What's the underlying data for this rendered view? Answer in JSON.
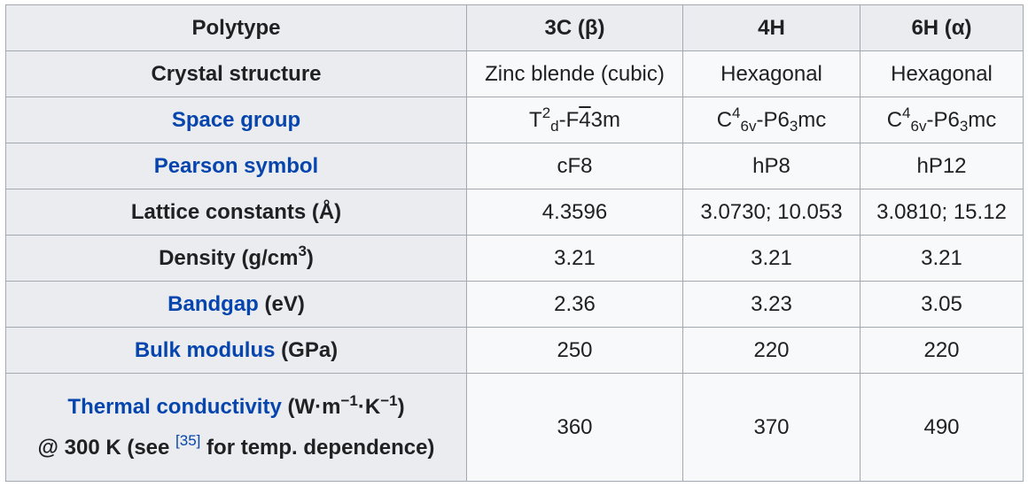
{
  "table": {
    "header": {
      "label": "Polytype",
      "columns": [
        "3C (β)",
        "4H",
        "6H (α)"
      ]
    },
    "crystal_structure": {
      "label": "Crystal structure",
      "values": [
        "Zinc blende (cubic)",
        "Hexagonal",
        "Hexagonal"
      ]
    },
    "space_group": {
      "label": "Space group",
      "c1": {
        "a": "T",
        "sup": "2",
        "sub": "d",
        "b": "-F",
        "bar": "4",
        "c": "3m"
      },
      "c2": {
        "a": "C",
        "sup": "4",
        "sub": "6v",
        "b": "-P6",
        "sub2": "3",
        "c": "mc"
      },
      "c3": {
        "a": "C",
        "sup": "4",
        "sub": "6v",
        "b": "-P6",
        "sub2": "3",
        "c": "mc"
      }
    },
    "pearson_symbol": {
      "label": "Pearson symbol",
      "values": [
        "cF8",
        "hP8",
        "hP12"
      ]
    },
    "lattice_constants": {
      "label": "Lattice constants (Å)",
      "values": [
        "4.3596",
        "3.0730; 10.053",
        "3.0810; 15.12"
      ]
    },
    "density": {
      "label_pre": "Density (g/cm",
      "label_sup": "3",
      "label_post": ")",
      "values": [
        "3.21",
        "3.21",
        "3.21"
      ]
    },
    "bandgap": {
      "link": "Bandgap",
      "unit": " (eV)",
      "values": [
        "2.36",
        "3.23",
        "3.05"
      ]
    },
    "bulk_modulus": {
      "link": "Bulk modulus",
      "unit": " (GPa)",
      "values": [
        "250",
        "220",
        "220"
      ]
    },
    "thermal_conductivity": {
      "link": "Thermal conductivity",
      "unit_a": " (W·m",
      "unit_sup1": "−1",
      "unit_b": "·K",
      "unit_sup2": "−1",
      "unit_c": ")",
      "line2_a": "@ 300 K (see ",
      "ref": "[35]",
      "line2_b": " for temp. dependence)",
      "values": [
        "360",
        "370",
        "490"
      ]
    }
  }
}
